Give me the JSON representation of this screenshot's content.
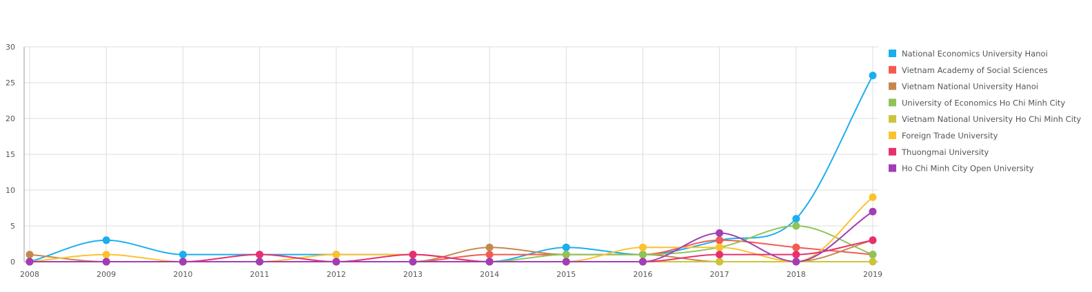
{
  "chart_data": {
    "type": "line",
    "x": [
      "2008",
      "2009",
      "2010",
      "2011",
      "2012",
      "2013",
      "2014",
      "2015",
      "2016",
      "2017",
      "2018",
      "2019"
    ],
    "ylim": [
      0,
      30
    ],
    "yticks": [
      "0",
      "5",
      "10",
      "15",
      "20",
      "25",
      "30"
    ],
    "grid": true,
    "legend_position": "right",
    "series": [
      {
        "name": "National Economics University Hanoi",
        "color": "#1aaef0",
        "values": [
          0,
          3,
          1,
          1,
          1,
          1,
          0,
          2,
          1,
          3,
          6,
          26
        ]
      },
      {
        "name": "Vietnam Academy of Social Sciences",
        "color": "#f45b4f",
        "values": [
          0,
          0,
          0,
          0,
          0,
          0,
          1,
          1,
          1,
          3,
          2,
          1
        ]
      },
      {
        "name": "Vietnam National University Hanoi",
        "color": "#c4884f",
        "values": [
          1,
          0,
          0,
          0,
          0,
          0,
          2,
          1,
          1,
          0,
          0,
          3
        ]
      },
      {
        "name": "University of Economics Ho Chi Minh City",
        "color": "#8fc456",
        "values": [
          0,
          0,
          0,
          0,
          0,
          0,
          0,
          1,
          1,
          2,
          5,
          1
        ]
      },
      {
        "name": "Vietnam National University Ho Chi Minh City",
        "color": "#cbc43a",
        "values": [
          0,
          0,
          0,
          0,
          0,
          0,
          0,
          0,
          0,
          0,
          0,
          0
        ]
      },
      {
        "name": "Foreign Trade University",
        "color": "#fcc22e",
        "values": [
          0,
          1,
          0,
          0,
          1,
          1,
          0,
          0,
          2,
          2,
          0,
          9
        ]
      },
      {
        "name": "Thuongmai University",
        "color": "#e8306e",
        "values": [
          0,
          0,
          0,
          1,
          0,
          1,
          0,
          0,
          0,
          1,
          1,
          3
        ]
      },
      {
        "name": "Ho Chi Minh City Open University",
        "color": "#a23db6",
        "values": [
          0,
          0,
          0,
          0,
          0,
          0,
          0,
          0,
          0,
          4,
          0,
          7
        ]
      }
    ]
  }
}
